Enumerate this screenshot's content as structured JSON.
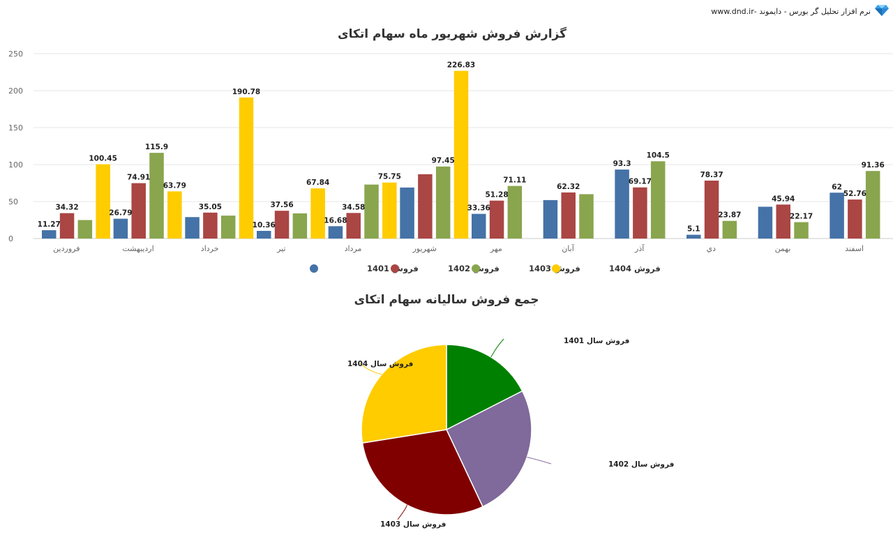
{
  "brand": {
    "text": "نرم افزار تحلیل گر بورس - دایموند -www.dnd.ir",
    "icon": "diamond-icon"
  },
  "colors": {
    "1401": "#4572a7",
    "1402": "#aa4643",
    "1403": "#89a54e",
    "1404": "#ffcc00"
  },
  "chart_data": [
    {
      "type": "bar",
      "title": "گزارش فروش شهریور ماه سهام اتکای",
      "categories": [
        "فروردین",
        "اردیبهشت",
        "خرداد",
        "تیر",
        "مرداد",
        "شهریور",
        "مهر",
        "آبان",
        "آذر",
        "دي",
        "بهمن",
        "اسفند"
      ],
      "ylim": [
        0,
        250
      ],
      "yticks": [
        0,
        50,
        100,
        150,
        200,
        250
      ],
      "grid": true,
      "legend_position": "bottom",
      "series": [
        {
          "name": "فروش 1401",
          "color": "#4572a7",
          "values": [
            11.27,
            26.79,
            29,
            10.36,
            16.68,
            69,
            33.36,
            52,
            93.3,
            5.1,
            43,
            62
          ],
          "labels": [
            "11.27",
            "26.79",
            "",
            "10.36",
            "16.68",
            "",
            "33.36",
            "",
            "93.3",
            "5.1",
            "",
            "62"
          ]
        },
        {
          "name": "فروش 1402",
          "color": "#aa4643",
          "values": [
            34.32,
            74.91,
            35.05,
            37.56,
            34.58,
            87,
            51.28,
            62.32,
            69.17,
            78.37,
            45.94,
            52.76
          ],
          "labels": [
            "34.32",
            "74.91",
            "35.05",
            "37.56",
            "34.58",
            "",
            "51.28",
            "62.32",
            "69.17",
            "78.37",
            "45.94",
            "52.76"
          ]
        },
        {
          "name": "فروش 1403",
          "color": "#89a54e",
          "values": [
            25,
            115.9,
            31,
            34,
            73,
            97.45,
            71.11,
            60,
            104.5,
            23.87,
            22.17,
            91.36
          ],
          "labels": [
            "",
            "115.9",
            "",
            "",
            "",
            "97.45",
            "71.11",
            "",
            "104.5",
            "23.87",
            "22.17",
            "91.36"
          ]
        },
        {
          "name": "فروش 1404",
          "color": "#ffcc00",
          "values": [
            100.45,
            63.79,
            190.78,
            67.84,
            75.75,
            226.83,
            null,
            null,
            null,
            null,
            null,
            null
          ],
          "labels": [
            "100.45",
            "63.79",
            "190.78",
            "67.84",
            "75.75",
            "226.83",
            "",
            "",
            "",
            "",
            "",
            ""
          ]
        }
      ]
    },
    {
      "type": "pie",
      "title": "جمع فروش سالیانه سهام اتکای",
      "slices": [
        {
          "label": "فروش سال 1401",
          "value": 17.5,
          "color": "#008000"
        },
        {
          "label": "فروش سال 1402",
          "value": 25.5,
          "color": "#80699b"
        },
        {
          "label": "فروش سال 1403",
          "value": 29.5,
          "color": "#800000"
        },
        {
          "label": "فروش سال 1404",
          "value": 27.5,
          "color": "#ffcc00"
        }
      ]
    }
  ]
}
